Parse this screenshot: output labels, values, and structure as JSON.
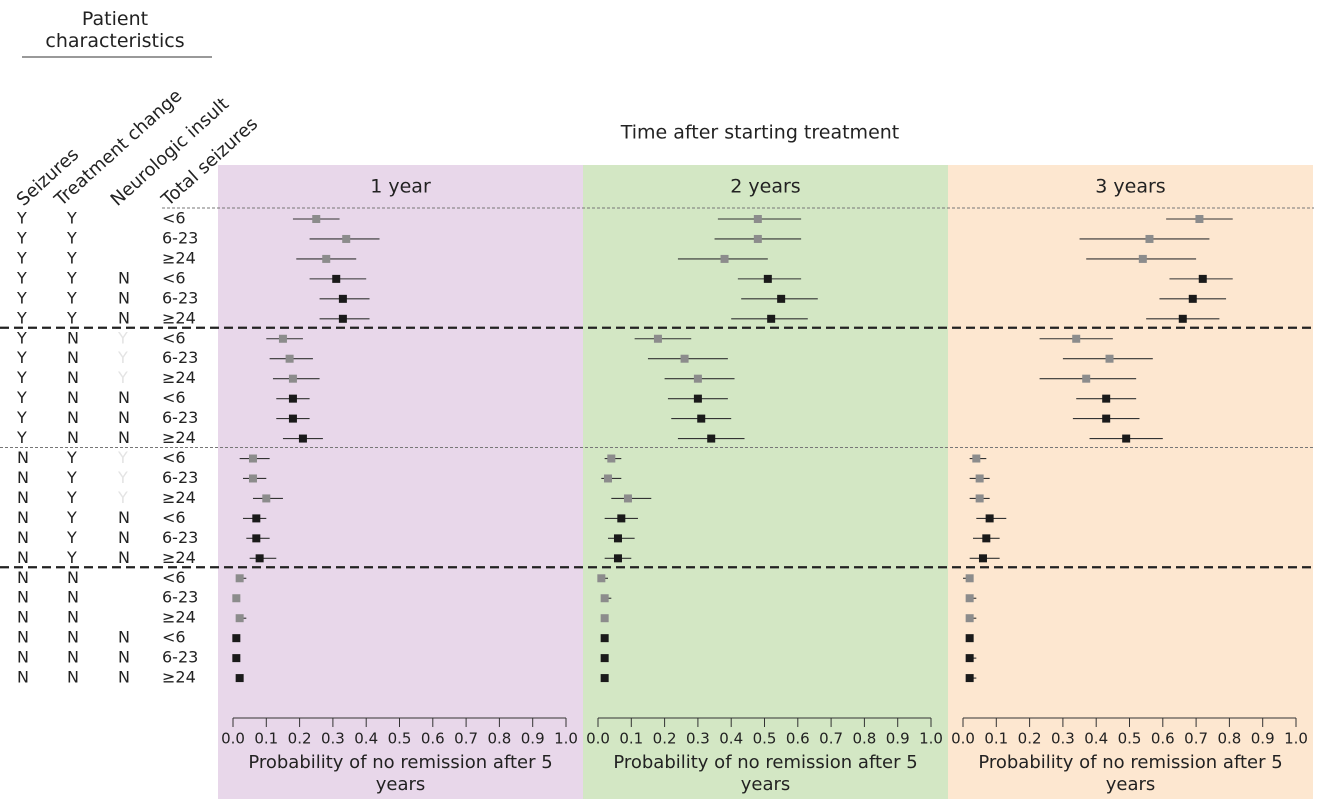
{
  "chart_data": {
    "type": "forest",
    "title": "Time after starting treatment",
    "header_title": "Patient characteristics",
    "column_headers": [
      "Seizures",
      "Treatment change",
      "Neurologic insult",
      "Total seizures"
    ],
    "rows": {
      "seizures": [
        "Y",
        "Y",
        "Y",
        "Y",
        "Y",
        "Y",
        "Y",
        "Y",
        "Y",
        "Y",
        "Y",
        "Y",
        "N",
        "N",
        "N",
        "N",
        "N",
        "N",
        "N",
        "N",
        "N",
        "N",
        "N",
        "N"
      ],
      "treatment_change": [
        "Y",
        "Y",
        "Y",
        "Y",
        "Y",
        "Y",
        "N",
        "N",
        "N",
        "N",
        "N",
        "N",
        "Y",
        "Y",
        "Y",
        "Y",
        "Y",
        "Y",
        "N",
        "N",
        "N",
        "N",
        "N",
        "N"
      ],
      "neurologic_insult": [
        null,
        null,
        null,
        "N",
        "N",
        "N",
        "Y",
        "Y",
        "Y",
        "N",
        "N",
        "N",
        "Y",
        "Y",
        "Y",
        "N",
        "N",
        "N",
        null,
        null,
        null,
        "N",
        "N",
        "N"
      ],
      "total_seizures": [
        "<6",
        "6-23",
        "≥24",
        "<6",
        "6-23",
        "≥24",
        "<6",
        "6-23",
        "≥24",
        "<6",
        "6-23",
        "≥24",
        "<6",
        "6-23",
        "≥24",
        "<6",
        "6-23",
        "≥24",
        "<6",
        "6-23",
        "≥24",
        "<6",
        "6-23",
        "≥24"
      ]
    },
    "marker_color": "#1a1a1a",
    "marker_color_unknown_insult": "#8c8c8c",
    "xlim": [
      0,
      1
    ],
    "xticks": [
      {
        "value": 0,
        "label": "0.0"
      },
      0.1,
      0.2,
      0.3,
      0.4,
      0.5,
      0.6,
      0.7,
      0.8,
      0.9,
      {
        "value": 1,
        "label": "1.0"
      }
    ],
    "xlabel": "Probability of no remission after 5 years",
    "panels": [
      {
        "name": "1 year",
        "color": "#e8d7ea",
        "point": [
          0.25,
          0.34,
          0.28,
          0.31,
          0.33,
          0.33,
          0.15,
          0.17,
          0.18,
          0.18,
          0.18,
          0.21,
          0.06,
          0.06,
          0.1,
          0.07,
          0.07,
          0.08,
          0.02,
          0.01,
          0.02,
          0.01,
          0.01,
          0.02
        ],
        "lower": [
          0.18,
          0.23,
          0.19,
          0.23,
          0.26,
          0.26,
          0.1,
          0.11,
          0.12,
          0.13,
          0.13,
          0.15,
          0.02,
          0.03,
          0.06,
          0.03,
          0.04,
          0.05,
          0.01,
          0.0,
          0.01,
          0.01,
          0.01,
          0.01
        ],
        "upper": [
          0.32,
          0.44,
          0.37,
          0.4,
          0.41,
          0.41,
          0.21,
          0.24,
          0.26,
          0.23,
          0.23,
          0.27,
          0.11,
          0.1,
          0.15,
          0.1,
          0.11,
          0.13,
          0.04,
          0.02,
          0.04,
          0.02,
          0.02,
          0.03
        ]
      },
      {
        "name": "2 years",
        "color": "#d3e7c4",
        "point": [
          0.48,
          0.48,
          0.38,
          0.51,
          0.55,
          0.52,
          0.18,
          0.26,
          0.3,
          0.3,
          0.31,
          0.34,
          0.04,
          0.03,
          0.09,
          0.07,
          0.06,
          0.06,
          0.01,
          0.02,
          0.02,
          0.02,
          0.02,
          0.02
        ],
        "lower": [
          0.36,
          0.35,
          0.24,
          0.42,
          0.43,
          0.4,
          0.11,
          0.15,
          0.2,
          0.21,
          0.22,
          0.24,
          0.02,
          0.01,
          0.04,
          0.02,
          0.03,
          0.02,
          0.0,
          0.01,
          0.01,
          0.01,
          0.01,
          0.01
        ],
        "upper": [
          0.61,
          0.61,
          0.51,
          0.61,
          0.66,
          0.63,
          0.28,
          0.39,
          0.41,
          0.39,
          0.4,
          0.44,
          0.07,
          0.07,
          0.16,
          0.12,
          0.11,
          0.1,
          0.03,
          0.04,
          0.03,
          0.02,
          0.02,
          0.03
        ]
      },
      {
        "name": "3 years",
        "color": "#fde7d0",
        "point": [
          0.71,
          0.56,
          0.54,
          0.72,
          0.69,
          0.66,
          0.34,
          0.44,
          0.37,
          0.43,
          0.43,
          0.49,
          0.04,
          0.05,
          0.05,
          0.08,
          0.07,
          0.06,
          0.02,
          0.02,
          0.02,
          0.02,
          0.02,
          0.02
        ],
        "lower": [
          0.61,
          0.35,
          0.37,
          0.62,
          0.59,
          0.55,
          0.23,
          0.3,
          0.23,
          0.34,
          0.33,
          0.38,
          0.02,
          0.02,
          0.02,
          0.04,
          0.03,
          0.02,
          0.0,
          0.01,
          0.01,
          0.01,
          0.01,
          0.02
        ],
        "upper": [
          0.81,
          0.74,
          0.7,
          0.81,
          0.79,
          0.77,
          0.45,
          0.57,
          0.52,
          0.52,
          0.53,
          0.6,
          0.07,
          0.08,
          0.08,
          0.13,
          0.11,
          0.11,
          0.03,
          0.04,
          0.04,
          0.03,
          0.04,
          0.04
        ]
      }
    ]
  }
}
